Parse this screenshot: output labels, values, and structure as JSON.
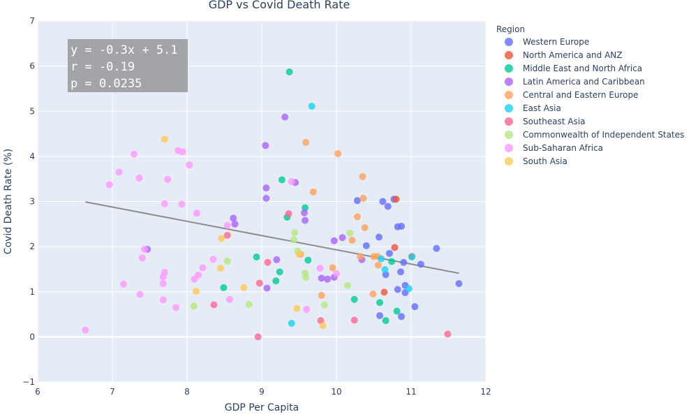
{
  "chart_data": {
    "type": "scatter",
    "title": "GDP vs Covid Death Rate",
    "xlabel": "GDP Per Capita",
    "ylabel": "Covid Death Rate (%)",
    "xlim": [
      6,
      12
    ],
    "ylim": [
      -1,
      7
    ],
    "xticks": [
      6,
      7,
      8,
      9,
      10,
      11,
      12
    ],
    "yticks": [
      -1,
      0,
      1,
      2,
      3,
      4,
      5,
      6,
      7
    ],
    "grid": true,
    "legend_title": "Region",
    "legend_position": "right",
    "annotation": [
      "y = -0.3x + 5.1",
      "r = -0.19",
      "p = 0.0235"
    ],
    "trendline": {
      "x": [
        6.64,
        11.64
      ],
      "y": [
        2.99,
        1.41
      ]
    },
    "series": [
      {
        "name": "Western Europe",
        "color": "#636efa",
        "x": [
          10.28,
          10.62,
          10.69,
          10.77,
          10.82,
          10.87,
          10.57,
          10.4,
          10.71,
          10.86,
          10.9,
          10.92,
          10.82,
          11.34,
          11.13,
          11.05,
          11.64,
          10.92,
          10.66,
          10.58,
          10.87
        ],
        "y": [
          3.02,
          3.0,
          2.89,
          3.05,
          2.44,
          2.45,
          2.21,
          2.02,
          1.85,
          1.44,
          1.65,
          1.14,
          1.05,
          1.96,
          1.61,
          0.67,
          1.18,
          0.98,
          1.38,
          0.47,
          0.45
        ]
      },
      {
        "name": "North America and ANZ",
        "color": "#ef553b",
        "x": [
          10.8,
          10.78,
          11.01,
          10.64
        ],
        "y": [
          3.05,
          1.98,
          1.78,
          0.99
        ]
      },
      {
        "name": "Middle East and North Africa",
        "color": "#00cc96",
        "x": [
          9.37,
          9.27,
          9.58,
          9.34,
          8.93,
          9.24,
          9.19,
          8.49,
          9.62,
          10.24,
          10.58,
          10.74,
          10.81,
          10.66
        ],
        "y": [
          5.87,
          3.48,
          2.86,
          2.65,
          1.77,
          1.44,
          1.24,
          1.09,
          1.7,
          0.83,
          0.76,
          1.67,
          0.57,
          0.36
        ]
      },
      {
        "name": "Latin America and Caribbean",
        "color": "#ab63fa",
        "x": [
          9.31,
          9.05,
          9.06,
          9.45,
          9.06,
          8.62,
          8.64,
          9.57,
          9.58,
          7.47,
          10.08,
          9.97,
          9.2,
          9.8,
          9.88,
          10.34,
          9.97,
          9.07
        ],
        "y": [
          4.87,
          4.24,
          3.3,
          3.42,
          3.07,
          2.63,
          2.5,
          2.75,
          2.58,
          1.94,
          2.2,
          2.13,
          1.71,
          1.3,
          1.28,
          1.71,
          1.32,
          1.08
        ]
      },
      {
        "name": "Central and Eastern Europe",
        "color": "#ffa15a",
        "x": [
          9.59,
          10.02,
          10.35,
          9.69,
          10.36,
          10.28,
          10.38,
          10.21,
          9.52,
          10.5,
          10.55,
          10.32,
          10.56,
          9.95,
          9.8,
          10.49
        ],
        "y": [
          4.31,
          4.06,
          3.55,
          3.21,
          3.07,
          2.66,
          2.42,
          2.14,
          1.83,
          1.78,
          1.78,
          1.78,
          1.59,
          1.53,
          0.92,
          0.95
        ]
      },
      {
        "name": "East Asia",
        "color": "#19d3f3",
        "x": [
          9.67,
          10.6,
          10.65,
          10.97,
          9.4,
          11.01
        ],
        "y": [
          5.11,
          1.73,
          1.49,
          1.07,
          0.3,
          1.77
        ]
      },
      {
        "name": "Southeast Asia",
        "color": "#ff6692",
        "x": [
          9.36,
          8.54,
          9.08,
          8.97,
          8.36,
          9.79,
          10.24,
          8.95,
          11.49
        ],
        "y": [
          2.73,
          2.25,
          1.65,
          1.19,
          0.71,
          0.36,
          0.37,
          0.0,
          0.06
        ]
      },
      {
        "name": "Commonwealth of Independent States",
        "color": "#b6e880",
        "x": [
          9.44,
          9.43,
          9.48,
          10.18,
          8.54,
          9.58,
          9.59,
          10.15,
          9.84,
          8.09,
          8.83
        ],
        "y": [
          2.31,
          2.15,
          1.9,
          2.3,
          1.68,
          1.41,
          1.32,
          1.14,
          0.71,
          0.68,
          0.72
        ]
      },
      {
        "name": "Sub-Saharan Africa",
        "color": "#ff97ff",
        "x": [
          7.29,
          7.09,
          6.96,
          7.36,
          7.74,
          7.88,
          7.94,
          8.03,
          7.7,
          7.93,
          8.13,
          8.54,
          7.43,
          7.4,
          8.35,
          8.21,
          7.7,
          8.1,
          8.15,
          7.68,
          7.68,
          7.15,
          7.37,
          7.68,
          8.57,
          9.4,
          9.78,
          10.0,
          7.85,
          9.6,
          6.64
        ],
        "y": [
          4.05,
          3.65,
          3.37,
          3.52,
          3.49,
          4.13,
          4.1,
          3.81,
          2.95,
          2.94,
          2.74,
          2.47,
          1.94,
          1.75,
          1.72,
          1.53,
          1.43,
          1.28,
          1.37,
          1.33,
          1.18,
          1.17,
          0.94,
          0.82,
          0.83,
          3.44,
          1.52,
          1.4,
          0.65,
          0.61,
          0.15
        ]
      },
      {
        "name": "South Asia",
        "color": "#fecb52",
        "x": [
          7.7,
          8.46,
          8.45,
          9.5,
          8.12,
          8.76,
          9.47,
          9.82
        ],
        "y": [
          4.38,
          2.18,
          1.52,
          1.83,
          1.01,
          1.09,
          0.63,
          0.25
        ]
      }
    ]
  }
}
